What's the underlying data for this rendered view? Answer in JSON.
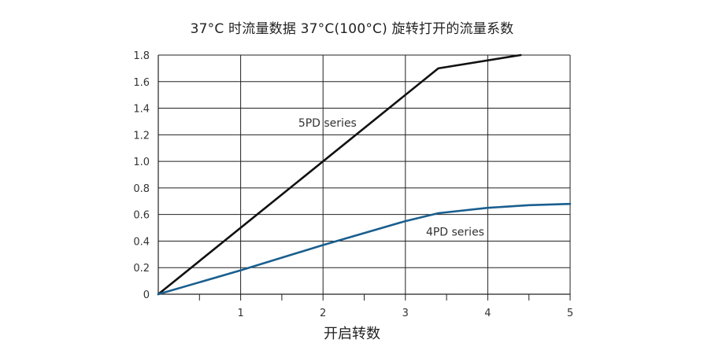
{
  "title": "37°C 时流量数据 37°C(100°C) 旋转打开的流量系数",
  "chart_data": {
    "type": "line",
    "title": "37°C 时流量数据 37°C(100°C) 旋转打开的流量系数",
    "xlabel": "开启转数",
    "ylabel": "",
    "xlim": [
      0,
      5
    ],
    "ylim": [
      0,
      1.8
    ],
    "x_ticks": [
      "1",
      "2",
      "3",
      "4",
      "5"
    ],
    "y_ticks": [
      "0",
      "0.2",
      "0.4",
      "0.6",
      "0.8",
      "1.0",
      "1.2",
      "1.4",
      "1.6",
      "1.8"
    ],
    "grid": true,
    "series": [
      {
        "name": "5PD series",
        "color": "#111111",
        "x": [
          0,
          3.4,
          4.4
        ],
        "y": [
          0,
          1.7,
          1.8
        ]
      },
      {
        "name": "4PD series",
        "color": "#1a5f8f",
        "x": [
          0,
          1,
          2,
          3,
          3.4,
          4,
          4.5,
          5
        ],
        "y": [
          0,
          0.18,
          0.37,
          0.55,
          0.61,
          0.65,
          0.67,
          0.68
        ]
      }
    ]
  }
}
